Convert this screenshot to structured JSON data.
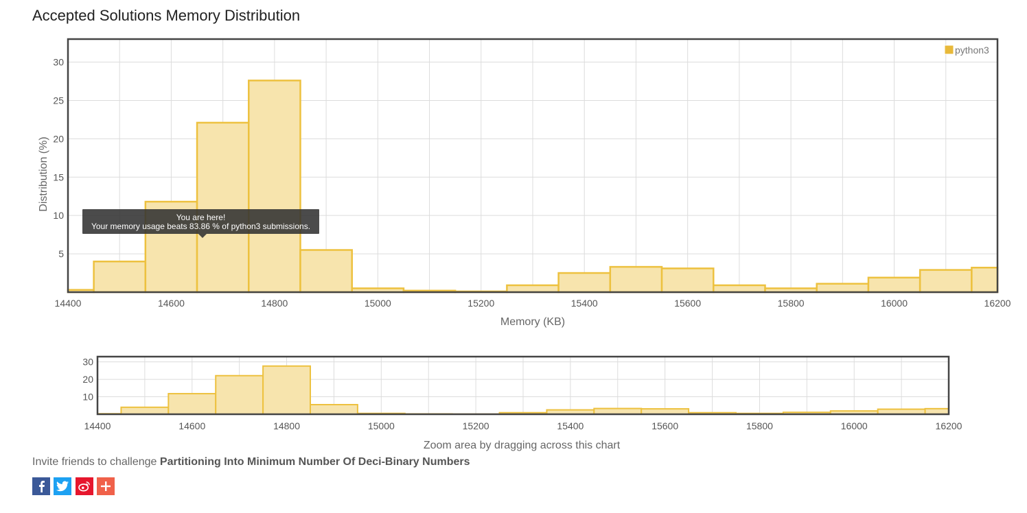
{
  "title": "Accepted Solutions Memory Distribution",
  "tooltip": {
    "line1": "You are here!",
    "line2": "Your memory usage beats 83.86 % of python3 submissions."
  },
  "invite": {
    "prefix": "Invite friends to challenge ",
    "problem": "Partitioning Into Minimum Number Of Deci-Binary Numbers"
  },
  "share_buttons": [
    {
      "name": "facebook-icon",
      "color": "#3b5998"
    },
    {
      "name": "twitter-icon",
      "color": "#1da1f2"
    },
    {
      "name": "weibo-icon",
      "color": "#e6162d"
    },
    {
      "name": "add-icon",
      "color": "#f0614a"
    }
  ],
  "colors": {
    "bar_fill": "#f7e4ad",
    "bar_stroke": "#edc13f",
    "legend": "#e8b93a"
  },
  "chart_data": [
    {
      "type": "bar",
      "xlabel": "Memory (KB)",
      "ylabel": "Distribution (%)",
      "xlim": [
        14400,
        16200
      ],
      "ylim": [
        0,
        33
      ],
      "xticks": [
        "14400",
        "14600",
        "14800",
        "15000",
        "15200",
        "15400",
        "15600",
        "15800",
        "16000",
        "16200"
      ],
      "yticks": [
        "5",
        "10",
        "15",
        "20",
        "25",
        "30"
      ],
      "legend": "python3",
      "legend_position": "top-right",
      "grid": true,
      "bin_width": 100,
      "bins": [
        {
          "start": 14350,
          "value": 0.3
        },
        {
          "start": 14450,
          "value": 4.0
        },
        {
          "start": 14550,
          "value": 11.8
        },
        {
          "start": 14650,
          "value": 22.1
        },
        {
          "start": 14750,
          "value": 27.6
        },
        {
          "start": 14850,
          "value": 5.5
        },
        {
          "start": 14950,
          "value": 0.5
        },
        {
          "start": 15050,
          "value": 0.2
        },
        {
          "start": 15150,
          "value": 0.1
        },
        {
          "start": 15250,
          "value": 0.9
        },
        {
          "start": 15350,
          "value": 2.5
        },
        {
          "start": 15450,
          "value": 3.3
        },
        {
          "start": 15550,
          "value": 3.1
        },
        {
          "start": 15650,
          "value": 0.9
        },
        {
          "start": 15750,
          "value": 0.5
        },
        {
          "start": 15850,
          "value": 1.1
        },
        {
          "start": 15950,
          "value": 1.9
        },
        {
          "start": 16050,
          "value": 2.9
        },
        {
          "start": 16150,
          "value": 3.2
        }
      ]
    },
    {
      "type": "bar",
      "xlabel": "Zoom area by dragging across this chart",
      "xlim": [
        14400,
        16200
      ],
      "ylim": [
        0,
        33
      ],
      "xticks": [
        "14400",
        "14600",
        "14800",
        "15000",
        "15200",
        "15400",
        "15600",
        "15800",
        "16000",
        "16200"
      ],
      "yticks": [
        "10",
        "20",
        "30"
      ],
      "grid": true
    }
  ]
}
